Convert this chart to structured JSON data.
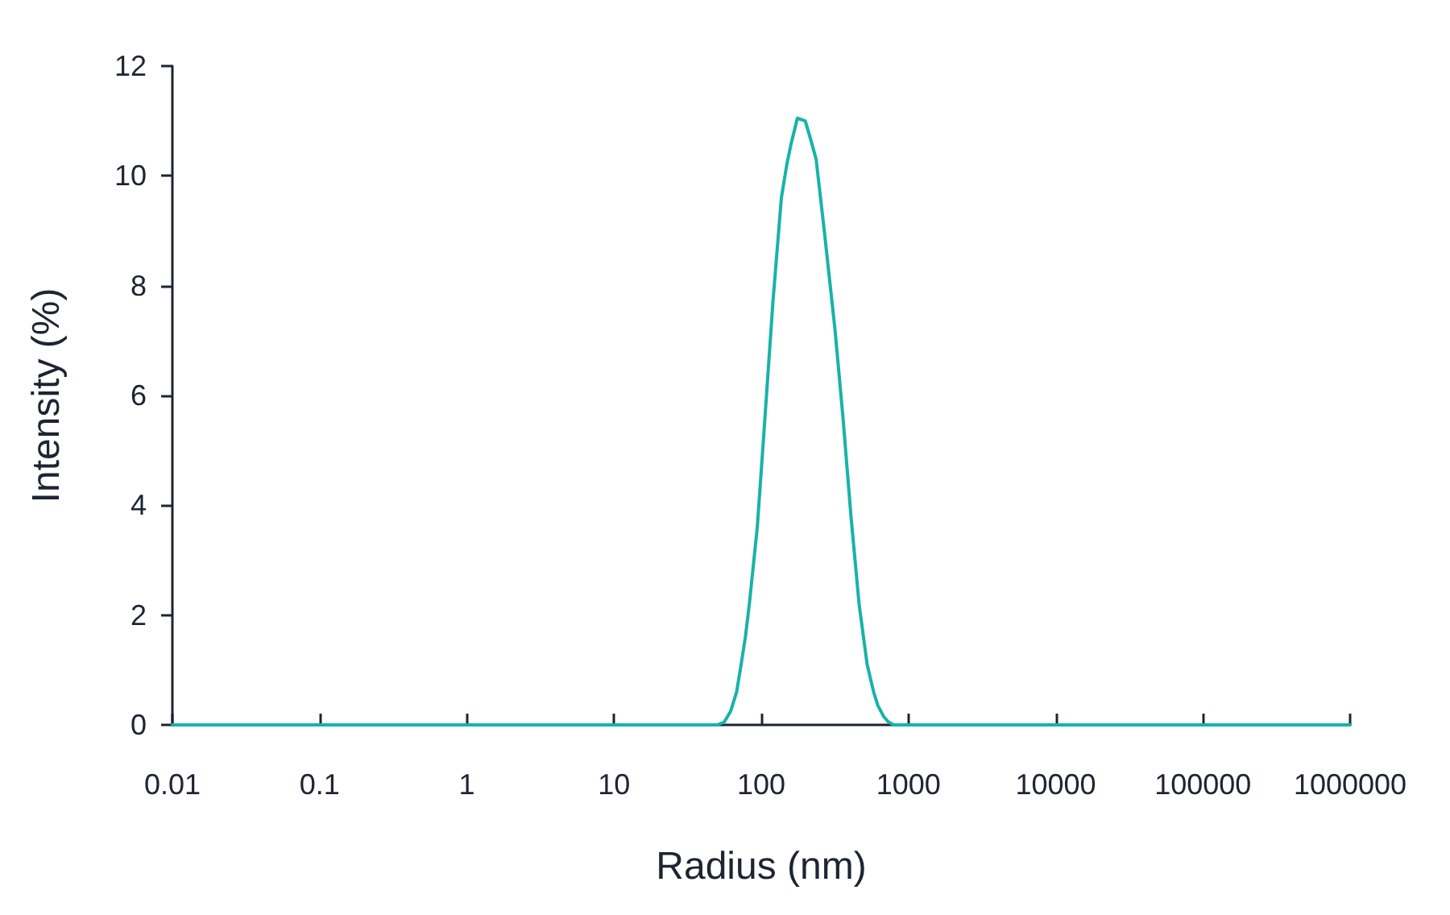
{
  "chart_data": {
    "type": "line",
    "xlabel": "Radius (nm)",
    "ylabel": "Intensity (%)",
    "x": [
      0.01,
      50,
      56,
      62,
      68,
      73,
      78,
      83,
      94,
      106,
      120,
      137,
      149,
      160,
      176,
      199,
      220,
      236,
      268,
      317,
      359,
      407,
      462,
      524,
      580,
      620,
      680,
      733,
      800,
      1000000
    ],
    "values": [
      0,
      0,
      0.05,
      0.25,
      0.6,
      1.1,
      1.6,
      2.2,
      3.6,
      5.6,
      7.7,
      9.6,
      10.2,
      10.6,
      11.05,
      11.0,
      10.6,
      10.3,
      9.0,
      7.2,
      5.6,
      3.8,
      2.2,
      1.1,
      0.6,
      0.35,
      0.15,
      0.05,
      0,
      0
    ],
    "color": "#17b3a8",
    "line_style": "solid",
    "xlim": [
      0.01,
      1000000
    ],
    "xticks": [
      0.01,
      0.1,
      1,
      10,
      100,
      1000,
      10000,
      100000,
      1000000
    ],
    "ylim": [
      0,
      12
    ],
    "yticks": [
      0,
      2,
      4,
      6,
      8,
      10,
      12
    ],
    "log": "x",
    "grid": false
  }
}
